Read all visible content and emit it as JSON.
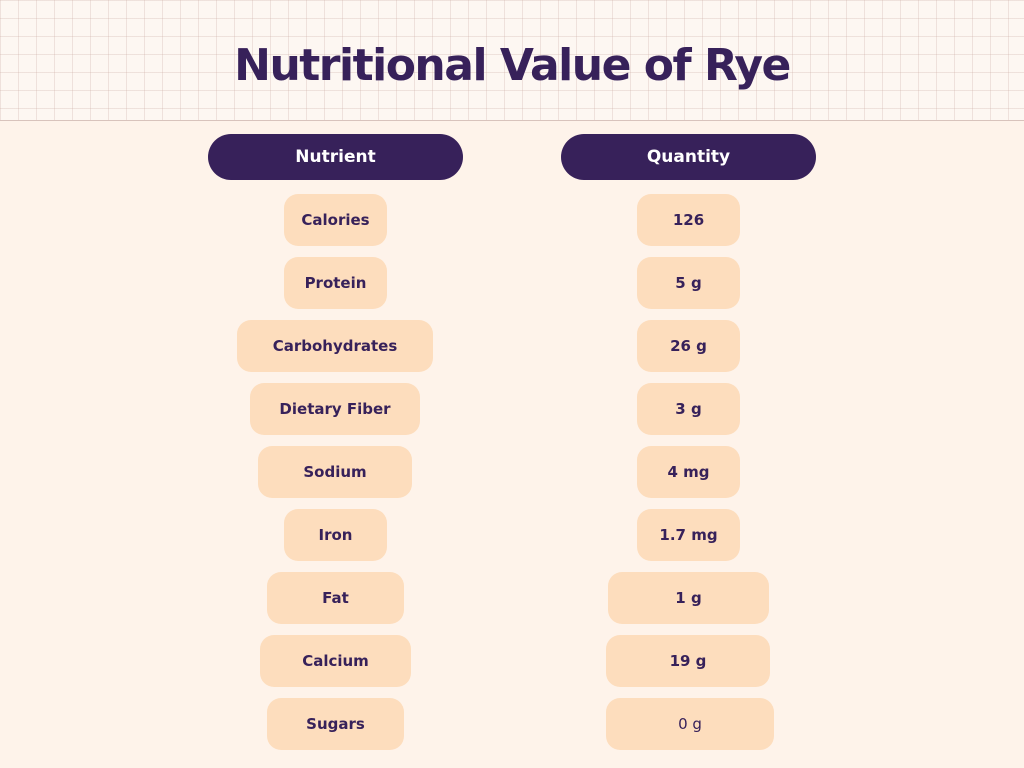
{
  "title": "Nutritional Value of Rye",
  "headers": {
    "nutrient": "Nutrient",
    "quantity": "Quantity"
  },
  "rows": [
    {
      "nutrient": "Calories",
      "quantity": "126"
    },
    {
      "nutrient": "Protein",
      "quantity": "5 g"
    },
    {
      "nutrient": "Carbohydrates",
      "quantity": "26 g"
    },
    {
      "nutrient": "Dietary Fiber",
      "quantity": "3 g"
    },
    {
      "nutrient": "Sodium",
      "quantity": "4 mg"
    },
    {
      "nutrient": "Iron",
      "quantity": "1.7 mg"
    },
    {
      "nutrient": "Fat",
      "quantity": "1 g"
    },
    {
      "nutrient": "Calcium",
      "quantity": "19 g"
    },
    {
      "nutrient": "Sugars",
      "quantity": "0 g"
    }
  ],
  "colors": {
    "primary": "#37215a",
    "pill": "#fdddbd",
    "background": "#fef3ea"
  }
}
